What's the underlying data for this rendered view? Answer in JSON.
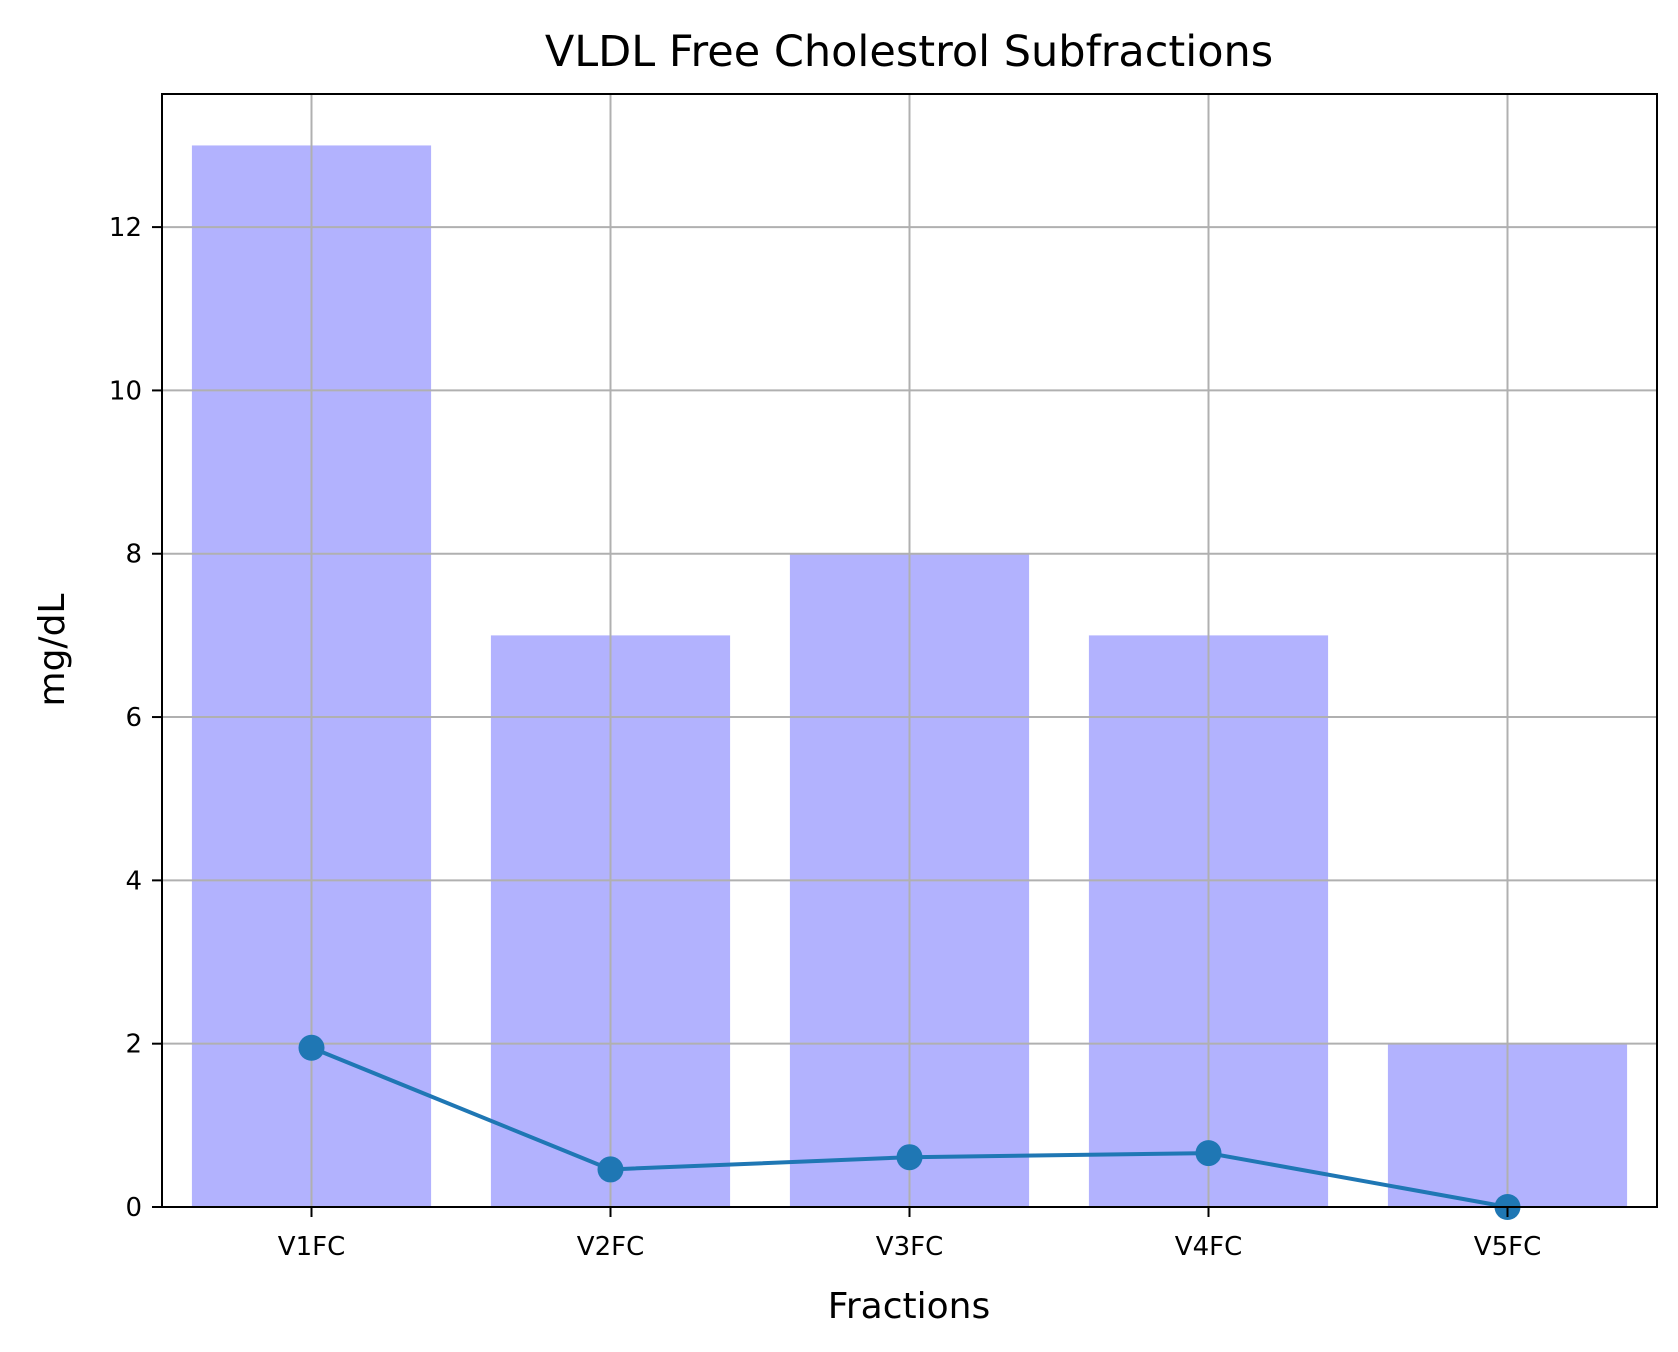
{
  "chart_data": {
    "type": "bar",
    "title": "VLDL Free Cholestrol Subfractions",
    "xlabel": "Fractions",
    "ylabel": "mg/dL",
    "categories": [
      "V1FC",
      "V2FC",
      "V3FC",
      "V4FC",
      "V5FC"
    ],
    "ylim": [
      0,
      13.63
    ],
    "yticks": [
      0,
      2,
      4,
      6,
      8,
      10,
      12
    ],
    "grid": true,
    "series": [
      {
        "type": "bar",
        "values": [
          13,
          7,
          8,
          7,
          2
        ],
        "color": "#b2b2fe"
      },
      {
        "type": "line",
        "values": [
          1.95,
          0.46,
          0.61,
          0.66,
          0.0
        ],
        "color": "#1f77b4",
        "marker": "circle"
      }
    ]
  }
}
